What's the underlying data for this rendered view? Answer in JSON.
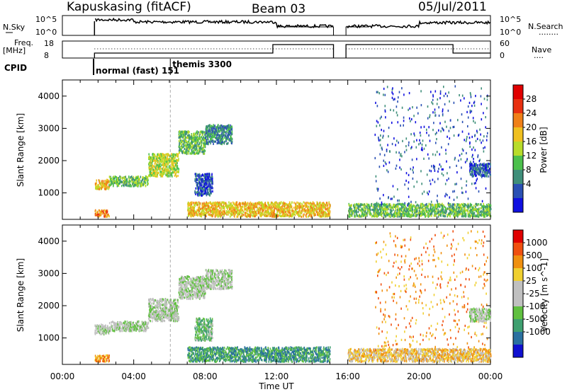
{
  "header": {
    "station": "Kapuskasing (fitACF)",
    "beam": "Beam 03",
    "date": "05/Jul/2011"
  },
  "noise_panel": {
    "left_label": "N.Sky",
    "right_label": "N.Search",
    "left_ticks": [
      "10^5",
      "10^0"
    ],
    "right_ticks": [
      "10^5",
      "10^0"
    ],
    "right_legend": "........"
  },
  "freq_panel": {
    "left_label_top": "Freq.",
    "left_label_bottom": "[MHz]",
    "left_ticks": [
      "18",
      "8"
    ],
    "right_label": "Nave",
    "right_ticks": [
      "60",
      "0"
    ],
    "right_legend": "...."
  },
  "cpid": {
    "label": "CPID",
    "modes": [
      {
        "name": "normal (fast) 151",
        "start_hour": 1.75
      },
      {
        "name": "themis 3300",
        "start_hour": 6.05
      }
    ]
  },
  "x_axis": {
    "label": "Time UT",
    "ticks": [
      "00:00",
      "04:00",
      "08:00",
      "12:00",
      "16:00",
      "20:00",
      "00:00"
    ]
  },
  "chart_data": [
    {
      "type": "heatmap",
      "name": "power",
      "ylabel": "Slant Range [km]",
      "yticks": [
        "1000",
        "2000",
        "3000",
        "4000"
      ],
      "ylim": [
        180,
        4500
      ],
      "xlim": [
        0,
        24
      ],
      "colorbar_label": "Power [dB]",
      "colorbar_ticks": [
        "28",
        "24",
        "20",
        "16",
        "12",
        "8",
        "4"
      ],
      "colorbar_colors": [
        "#1010e0",
        "#2a50b4",
        "#3f8f7a",
        "#4cc04c",
        "#b8dc2a",
        "#f0c020",
        "#f08018",
        "#e83010",
        "#e00000"
      ],
      "data_gap_hours": [
        15.2,
        15.9
      ],
      "regions": [
        {
          "t": [
            1.8,
            2.6
          ],
          "r": [
            1100,
            1400
          ],
          "level": 5
        },
        {
          "t": [
            2.6,
            4.8
          ],
          "r": [
            1200,
            1500
          ],
          "level": 3
        },
        {
          "t": [
            4.8,
            6.5
          ],
          "r": [
            1500,
            2200
          ],
          "level": 4
        },
        {
          "t": [
            6.5,
            8.0
          ],
          "r": [
            2200,
            2900
          ],
          "level": 3
        },
        {
          "t": [
            8.0,
            9.5
          ],
          "r": [
            2500,
            3100
          ],
          "level": 2
        },
        {
          "t": [
            7.4,
            8.4
          ],
          "r": [
            900,
            1600
          ],
          "level": 1
        },
        {
          "t": [
            1.8,
            2.6
          ],
          "r": [
            250,
            450
          ],
          "level": 6
        },
        {
          "t": [
            7.0,
            15.0
          ],
          "r": [
            250,
            700
          ],
          "level": 5
        },
        {
          "t": [
            16.0,
            24.0
          ],
          "r": [
            250,
            650
          ],
          "level": 3
        },
        {
          "t": [
            17.5,
            23.8
          ],
          "r": [
            600,
            4300
          ],
          "level": 1
        },
        {
          "t": [
            22.8,
            24.0
          ],
          "r": [
            1500,
            1900
          ],
          "level": 1
        }
      ]
    },
    {
      "type": "heatmap",
      "name": "velocity",
      "ylabel": "Slant Range [km]",
      "yticks": [
        "1000",
        "2000",
        "3000",
        "4000"
      ],
      "ylim": [
        180,
        4500
      ],
      "xlim": [
        0,
        24
      ],
      "colorbar_label": "Velocity [m s^-1]",
      "colorbar_ticks": [
        "1000",
        "500",
        "100",
        "25",
        "-25",
        "-100",
        "-500",
        "-1000"
      ],
      "colorbar_colors": [
        "#1010d0",
        "#2a70a0",
        "#3fa070",
        "#60c040",
        "#c0c0c0",
        "#c0c0c0",
        "#f0d030",
        "#f09010",
        "#f05010",
        "#e00000"
      ],
      "data_gap_hours": [
        15.2,
        15.9
      ],
      "regions": [
        {
          "t": [
            1.8,
            2.6
          ],
          "r": [
            1100,
            1400
          ],
          "level": 4
        },
        {
          "t": [
            2.6,
            4.8
          ],
          "r": [
            1200,
            1500
          ],
          "level": 4
        },
        {
          "t": [
            4.8,
            6.5
          ],
          "r": [
            1500,
            2200
          ],
          "level": 4
        },
        {
          "t": [
            6.5,
            8.0
          ],
          "r": [
            2200,
            2900
          ],
          "level": 4
        },
        {
          "t": [
            8.0,
            9.5
          ],
          "r": [
            2500,
            3100
          ],
          "level": 4
        },
        {
          "t": [
            7.4,
            8.4
          ],
          "r": [
            900,
            1600
          ],
          "level": 3
        },
        {
          "t": [
            1.8,
            2.6
          ],
          "r": [
            250,
            450
          ],
          "level": 7
        },
        {
          "t": [
            7.0,
            15.0
          ],
          "r": [
            250,
            700
          ],
          "level": 2
        },
        {
          "t": [
            16.0,
            24.0
          ],
          "r": [
            250,
            650
          ],
          "level": 6
        },
        {
          "t": [
            17.5,
            23.8
          ],
          "r": [
            600,
            4300
          ],
          "level": 7
        },
        {
          "t": [
            22.8,
            24.0
          ],
          "r": [
            1500,
            1900
          ],
          "level": 4
        }
      ]
    }
  ]
}
